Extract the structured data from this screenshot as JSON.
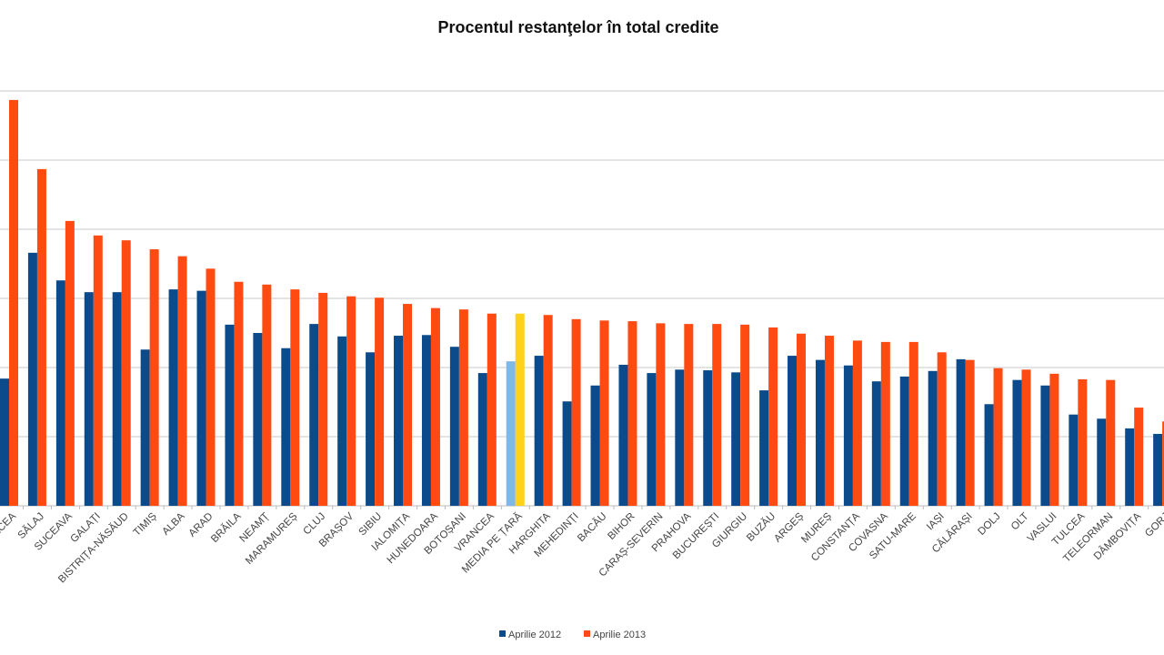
{
  "chart_data": {
    "type": "bar",
    "title": "Procentul restanţelor în total credite",
    "xlabel": "",
    "ylabel": "",
    "ylim": [
      0,
      6
    ],
    "grid": true,
    "legend_position": "bottom",
    "categories": [
      "VÂLCEA",
      "SĂLAJ",
      "SUCEAVA",
      "GALAȚI",
      "BISTRIȚA-NĂSĂUD",
      "TIMIȘ",
      "ALBA",
      "ARAD",
      "BRĂILA",
      "NEAMȚ",
      "MARAMUREȘ",
      "CLUJ",
      "BRAȘOV",
      "SIBIU",
      "IALOMIȚA",
      "HUNEDOARA",
      "BOTOȘANI",
      "VRANCEA",
      "MEDIA PE ȚARĂ",
      "HARGHITA",
      "MEHEDINȚI",
      "BACĂU",
      "BIHOR",
      "CARAȘ-SEVERIN",
      "PRAHOVA",
      "BUCUREȘTI",
      "GIURGIU",
      "BUZĂU",
      "ARGEȘ",
      "MUREȘ",
      "CONSTANȚA",
      "COVASNA",
      "SATU-MARE",
      "IAȘI",
      "CĂLĂRAȘI",
      "DOLJ",
      "OLT",
      "VASLUI",
      "TULCEA",
      "TELEORMAN",
      "DÂMBOVIȚA",
      "GORJ"
    ],
    "highlight_category": "MEDIA PE ȚARĂ",
    "series": [
      {
        "name": "Aprilie 2012",
        "color": "#0b4a8b",
        "highlight_color": "#7fb8e8",
        "values": [
          1.84,
          3.66,
          3.26,
          3.09,
          3.09,
          2.26,
          3.13,
          3.11,
          2.62,
          2.5,
          2.28,
          2.63,
          2.45,
          2.22,
          2.46,
          2.47,
          2.3,
          1.92,
          2.09,
          2.17,
          1.51,
          1.74,
          2.04,
          1.92,
          1.97,
          1.96,
          1.93,
          1.67,
          2.17,
          2.11,
          2.03,
          1.8,
          1.87,
          1.95,
          2.12,
          1.47,
          1.82,
          1.74,
          1.32,
          1.26,
          1.12,
          1.04
        ]
      },
      {
        "name": "Aprilie 2013",
        "color": "#ff4a12",
        "highlight_color": "#ffd21a",
        "values": [
          5.87,
          4.87,
          4.12,
          3.91,
          3.84,
          3.71,
          3.61,
          3.43,
          3.24,
          3.2,
          3.13,
          3.08,
          3.03,
          3.01,
          2.92,
          2.86,
          2.84,
          2.78,
          2.78,
          2.76,
          2.7,
          2.68,
          2.67,
          2.64,
          2.63,
          2.63,
          2.62,
          2.58,
          2.49,
          2.46,
          2.39,
          2.37,
          2.37,
          2.22,
          2.11,
          1.99,
          1.97,
          1.91,
          1.83,
          1.82,
          1.42,
          1.22
        ]
      }
    ]
  }
}
